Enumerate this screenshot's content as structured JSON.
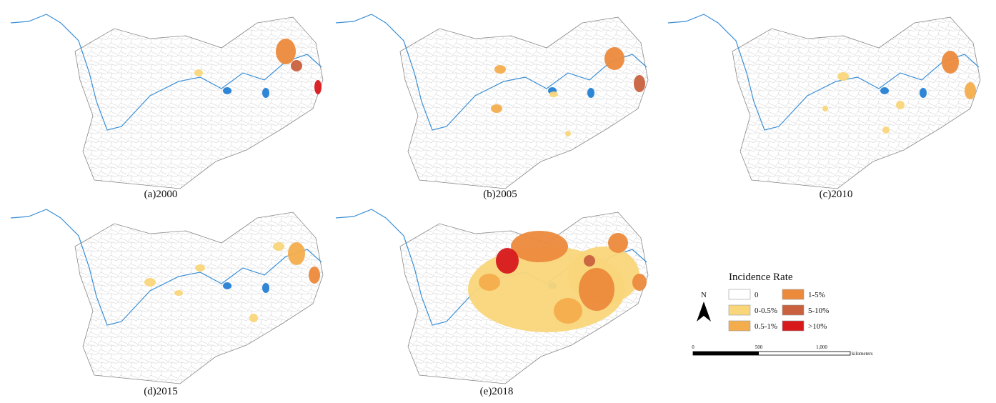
{
  "panels": [
    {
      "label": "(a)2000"
    },
    {
      "label": "(b)2005"
    },
    {
      "label": "(c)2010"
    },
    {
      "label": "(d)2015"
    },
    {
      "label": "(e)2018"
    }
  ],
  "legend": {
    "title": "Incidence Rate",
    "items": [
      {
        "label": "0",
        "color": "#ffffff"
      },
      {
        "label": "0-0.5%",
        "color": "#f9d67a"
      },
      {
        "label": "0.5-1%",
        "color": "#f4ad4c"
      },
      {
        "label": "1-5%",
        "color": "#ec8a3c"
      },
      {
        "label": "5-10%",
        "color": "#c9613f"
      },
      {
        "label": ">10%",
        "color": "#d7191c"
      }
    ]
  },
  "north": "N",
  "scale_bar": {
    "ticks": [
      "0",
      "500",
      "1,000"
    ],
    "unit": "kilometers"
  }
}
